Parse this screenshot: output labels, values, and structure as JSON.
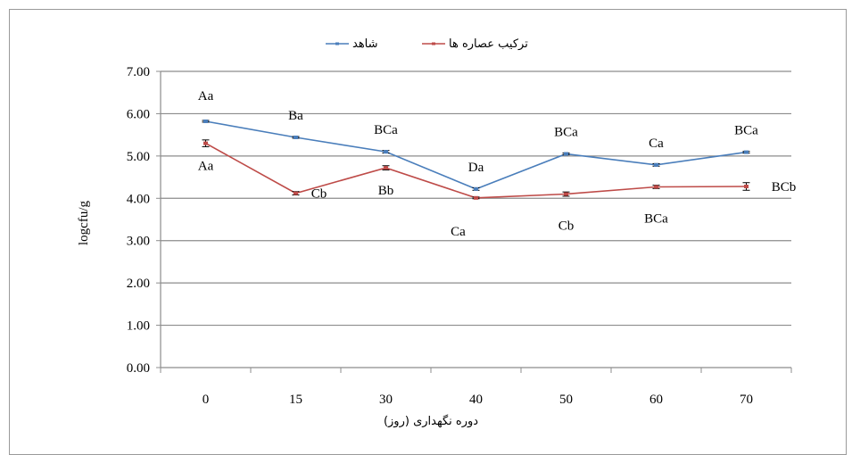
{
  "chart_data": {
    "type": "line",
    "categories": [
      "0",
      "15",
      "30",
      "40",
      "50",
      "60",
      "70"
    ],
    "series": [
      {
        "name": "شاهد",
        "color": "#4a7ebb",
        "values": [
          5.82,
          5.44,
          5.1,
          4.22,
          5.05,
          4.79,
          5.09
        ],
        "errors": [
          0.02,
          0.02,
          0.03,
          0.03,
          0.02,
          0.03,
          0.02
        ],
        "labels": [
          "Aa",
          "Ba",
          "BCa",
          "Da",
          "BCa",
          "Ca",
          "BCa"
        ]
      },
      {
        "name": "ترکیب عصاره ها",
        "color": "#be4b48",
        "values": [
          5.3,
          4.12,
          4.72,
          4.01,
          4.1,
          4.27,
          4.28
        ],
        "errors": [
          0.08,
          0.04,
          0.05,
          0.02,
          0.05,
          0.04,
          0.09
        ],
        "labels": [
          "Aa",
          "Cb",
          "Bb",
          "Ca",
          "Cb",
          "BCa",
          "BCb"
        ]
      }
    ],
    "ylabel": "logcfu/g",
    "xlabel": "(روز) دوره نگهداری",
    "ylim": [
      0,
      7
    ],
    "yticks": [
      "0.00",
      "1.00",
      "2.00",
      "3.00",
      "4.00",
      "5.00",
      "6.00",
      "7.00"
    ],
    "grid": true,
    "legend": "top-center"
  }
}
